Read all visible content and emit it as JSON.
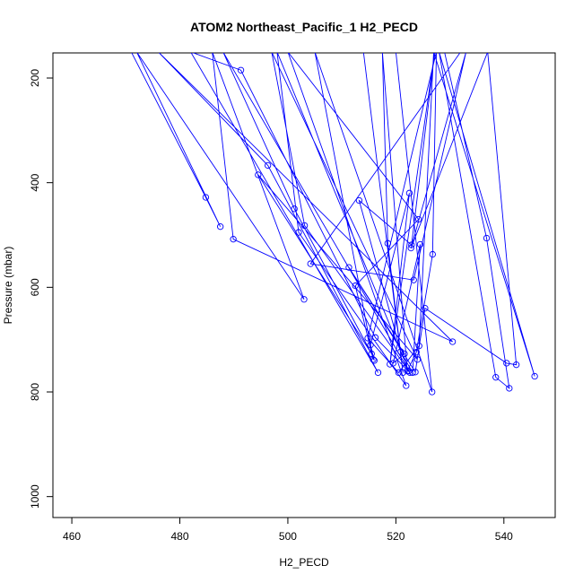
{
  "chart_data": {
    "type": "line",
    "title": "ATOM2 Northeast_Pacific_1 H2_PECD",
    "xlabel": "H2_PECD",
    "ylabel": "Pressure (mbar)",
    "xlim": [
      456.5,
      549.5
    ],
    "ylim": [
      1040,
      152
    ],
    "x_ticks": [
      460,
      480,
      500,
      520,
      540
    ],
    "y_ticks": [
      200,
      400,
      600,
      800,
      1000
    ],
    "series_color": "#0000ff",
    "marker": "open-circle",
    "series": [
      {
        "x": [
          471,
          484.8,
          487.5,
          472,
          503,
          486,
          489.9,
          530.5,
          476,
          496.3,
          516.7,
          482,
          491.3,
          516.2,
          522.6,
          488,
          501.2,
          515.5,
          494.5,
          524,
          497,
          503.1,
          522.4,
          498,
          502,
          521.9,
          500,
          524.2,
          512.5,
          515.8,
          505,
          526.7,
          520,
          529,
          536.8,
          541,
          538.5,
          528,
          545.7,
          527,
          524.3,
          520.5,
          514.8,
          527.5,
          526.8,
          523.8,
          522.1,
          517.5,
          518.5,
          521.3,
          514,
          532,
          504.2,
          523.3,
          533,
          522.8,
          537,
          542.3,
          540.5,
          525.4,
          523.6,
          511.3,
          521.6,
          519.5,
          524.5,
          523.1,
          520.9,
          513.2,
          522.9,
          527.2,
          518.9,
          522.5,
          515.3,
          516
        ],
        "y": [
          150,
          428,
          484,
          150,
          623,
          150,
          508,
          704,
          150,
          367,
          763,
          150,
          185,
          696,
          763,
          150,
          450,
          727,
          385,
          738,
          150,
          482,
          760,
          150,
          495,
          788,
          150,
          470,
          597,
          738,
          150,
          800,
          150,
          150,
          506,
          793,
          772,
          150,
          770,
          150,
          712,
          763,
          697,
          150,
          537,
          724,
          760,
          150,
          516,
          763,
          150,
          150,
          555,
          586,
          150,
          525,
          150,
          748,
          745,
          640,
          762,
          562,
          727,
          745,
          518,
          763,
          723,
          434,
          519,
          150,
          747,
          420,
          710,
          740
        ]
      }
    ]
  }
}
